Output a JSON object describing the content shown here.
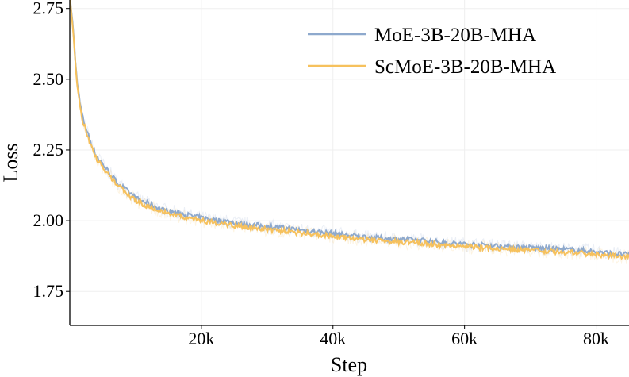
{
  "chart_data": {
    "type": "line",
    "title": "",
    "xlabel": "Step",
    "ylabel": "Loss",
    "xlim": [
      0,
      85000
    ],
    "ylim": [
      1.63,
      2.78
    ],
    "xticks": [
      {
        "value": 20000,
        "label": "20k"
      },
      {
        "value": 40000,
        "label": "40k"
      },
      {
        "value": 60000,
        "label": "60k"
      },
      {
        "value": 80000,
        "label": "80k"
      }
    ],
    "yticks": [
      {
        "value": 1.75,
        "label": "1.75"
      },
      {
        "value": 2.0,
        "label": "2.00"
      },
      {
        "value": 2.25,
        "label": "2.25"
      },
      {
        "value": 2.5,
        "label": "2.50"
      },
      {
        "value": 2.75,
        "label": "2.75"
      }
    ],
    "grid": true,
    "legend_position": "top-right",
    "series": [
      {
        "name": "MoE-3B-20B-MHA",
        "color": "#8ea9cd",
        "x": [
          0,
          500,
          1000,
          1500,
          2000,
          3000,
          4000,
          5000,
          6000,
          7000,
          8000,
          9000,
          10000,
          12000,
          14000,
          16000,
          18000,
          20000,
          23000,
          26000,
          30000,
          34000,
          38000,
          42000,
          46000,
          50000,
          54000,
          58000,
          62000,
          66000,
          70000,
          74000,
          78000,
          80000,
          82000,
          85000
        ],
        "y": [
          2.8,
          2.68,
          2.52,
          2.42,
          2.36,
          2.29,
          2.23,
          2.2,
          2.17,
          2.14,
          2.12,
          2.1,
          2.08,
          2.06,
          2.04,
          2.03,
          2.02,
          2.01,
          2.0,
          1.99,
          1.98,
          1.97,
          1.96,
          1.95,
          1.94,
          1.935,
          1.93,
          1.92,
          1.915,
          1.91,
          1.905,
          1.9,
          1.895,
          1.89,
          1.885,
          1.88
        ]
      },
      {
        "name": "ScMoE-3B-20B-MHA",
        "color": "#f6c15d",
        "x": [
          0,
          500,
          1000,
          1500,
          2000,
          3000,
          4000,
          5000,
          6000,
          7000,
          8000,
          9000,
          10000,
          12000,
          14000,
          16000,
          18000,
          20000,
          23000,
          26000,
          30000,
          34000,
          38000,
          42000,
          46000,
          50000,
          54000,
          58000,
          62000,
          66000,
          70000,
          74000,
          78000,
          80000,
          82000,
          85000
        ],
        "y": [
          2.8,
          2.67,
          2.51,
          2.41,
          2.35,
          2.28,
          2.22,
          2.19,
          2.16,
          2.13,
          2.11,
          2.09,
          2.07,
          2.05,
          2.035,
          2.02,
          2.01,
          2.0,
          1.99,
          1.98,
          1.97,
          1.96,
          1.95,
          1.94,
          1.93,
          1.925,
          1.92,
          1.91,
          1.905,
          1.9,
          1.895,
          1.89,
          1.885,
          1.88,
          1.875,
          1.875
        ]
      }
    ]
  }
}
